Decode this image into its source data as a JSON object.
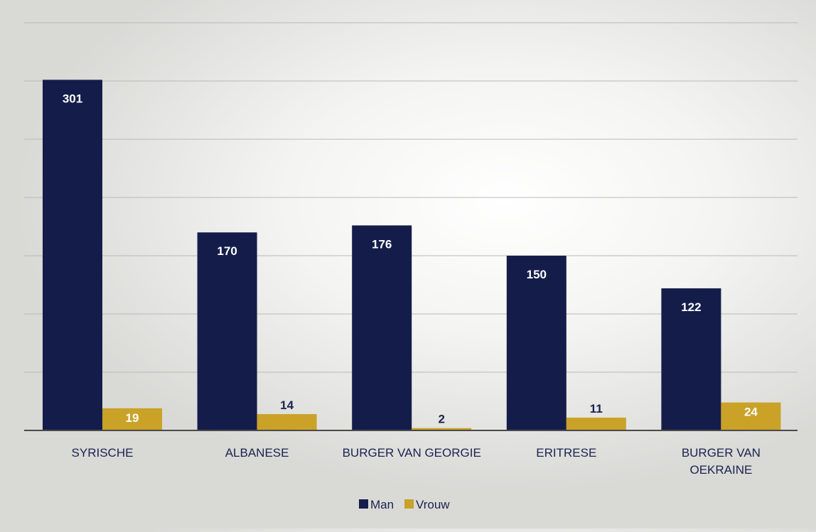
{
  "chart_data": {
    "type": "bar",
    "title": "",
    "xlabel": "",
    "ylabel": "",
    "ylim": [
      0,
      350
    ],
    "grid": true,
    "legend_position": "bottom",
    "categories": [
      [
        "SYRISCHE"
      ],
      [
        "ALBANESE"
      ],
      [
        "BURGER VAN GEORGIE"
      ],
      [
        "ERITRESE"
      ],
      [
        "BURGER VAN",
        "OEKRAINE"
      ]
    ],
    "series": [
      {
        "name": "Man",
        "color": "#141d4a",
        "values": [
          301,
          170,
          176,
          150,
          122
        ]
      },
      {
        "name": "Vrouw",
        "color": "#c9a227",
        "values": [
          19,
          14,
          2,
          11,
          24
        ]
      }
    ]
  }
}
